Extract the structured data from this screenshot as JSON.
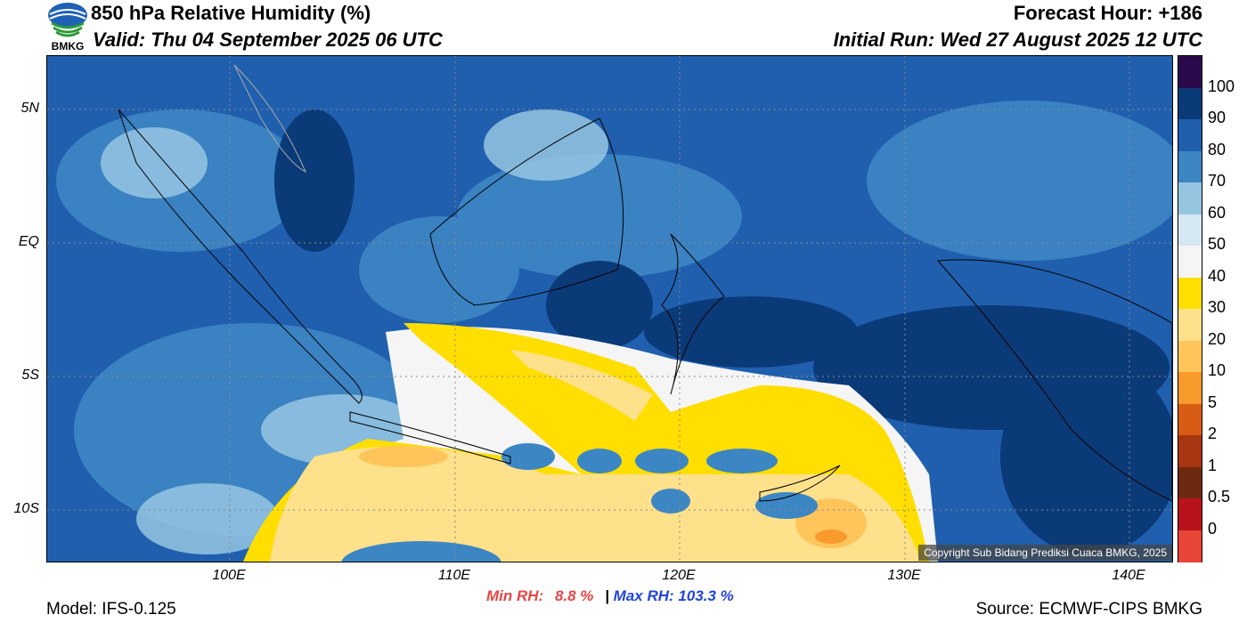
{
  "header": {
    "title": "850 hPa Relative Humidity (%)",
    "valid": "Valid: Thu 04 September 2025 06 UTC",
    "forecast_hour": "Forecast Hour: +186",
    "initial_run": "Initial Run: Wed 27 August 2025 12 UTC",
    "logo_text": "BMKG"
  },
  "map": {
    "lat_labels": [
      "5N",
      "EQ",
      "5S",
      "10S"
    ],
    "lon_labels": [
      "100E",
      "110E",
      "120E",
      "130E",
      "140E"
    ],
    "copyright": "Copyright Sub Bidang Prediksi Cuaca BMKG, 2025"
  },
  "colorbar": {
    "labels": [
      "100",
      "90",
      "80",
      "70",
      "60",
      "50",
      "40",
      "30",
      "20",
      "10",
      "5",
      "2",
      "1",
      "0.5",
      "0"
    ],
    "colors": [
      "#2a0a4a",
      "#0b3a78",
      "#1f5fae",
      "#3d86c4",
      "#96c5e2",
      "#d5e8f3",
      "#f5f5f5",
      "#ffde00",
      "#ffe18c",
      "#ffc55a",
      "#f99b2c",
      "#d95c14",
      "#a83610",
      "#6e2a10",
      "#b8131c",
      "#e84538"
    ]
  },
  "stats": {
    "min_label": "Min RH:",
    "min_value": "8.8 %",
    "separator": "|",
    "max_label": "Max RH:",
    "max_value": "103.3 %"
  },
  "footer": {
    "model": "Model: IFS-0.125",
    "source": "Source: ECMWF-CIPS BMKG"
  }
}
